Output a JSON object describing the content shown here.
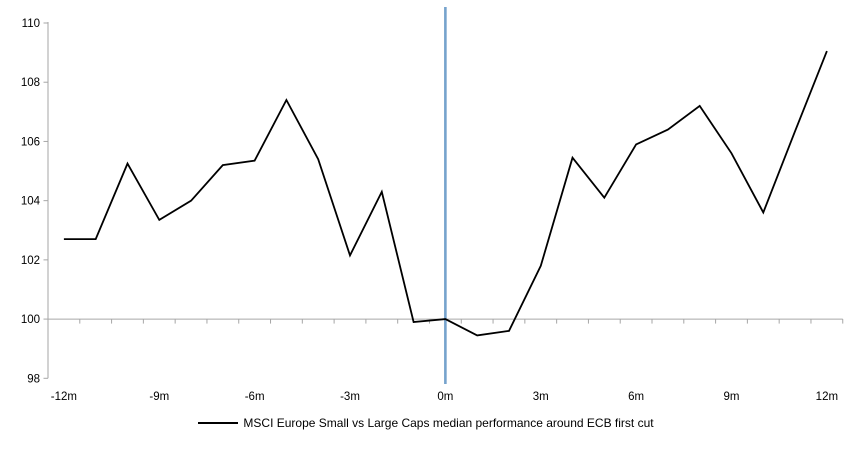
{
  "chart_data": {
    "type": "line",
    "title": "",
    "xlabel": "",
    "ylabel": "",
    "x_months": [
      -12,
      -11,
      -10,
      -9,
      -8,
      -7,
      -6,
      -5,
      -4,
      -3,
      -2,
      -1,
      0,
      1,
      2,
      3,
      4,
      5,
      6,
      7,
      8,
      9,
      10,
      11,
      12
    ],
    "x_tick_labels": [
      "-12m",
      "-9m",
      "-6m",
      "-3m",
      "0m",
      "3m",
      "6m",
      "9m",
      "12m"
    ],
    "x_label_step_months": 3,
    "y_ticks": [
      110,
      108,
      106,
      104,
      102,
      100,
      98
    ],
    "ylim": [
      98,
      110
    ],
    "series": [
      {
        "name": "MSCI Europe Small vs Large Caps median performance around ECB first cut",
        "values": [
          102.7,
          102.7,
          105.25,
          103.35,
          104.0,
          105.2,
          105.35,
          107.4,
          105.4,
          102.15,
          104.3,
          99.9,
          100.0,
          99.45,
          99.6,
          101.8,
          105.45,
          104.1,
          105.9,
          106.4,
          107.2,
          105.6,
          103.6,
          106.35,
          109.05
        ]
      }
    ],
    "baseline_value": 100,
    "event_line_at_month": 0,
    "grid": "off",
    "legend_position": "bottom-center",
    "colors": {
      "series_line": "#000000",
      "event_line": "#76A3CD",
      "axis_line": "#A6A6A6",
      "tick_text": "#000000",
      "background": "#FFFFFF"
    }
  },
  "legend": {
    "label": "MSCI Europe Small vs Large Caps median performance around ECB first cut"
  }
}
